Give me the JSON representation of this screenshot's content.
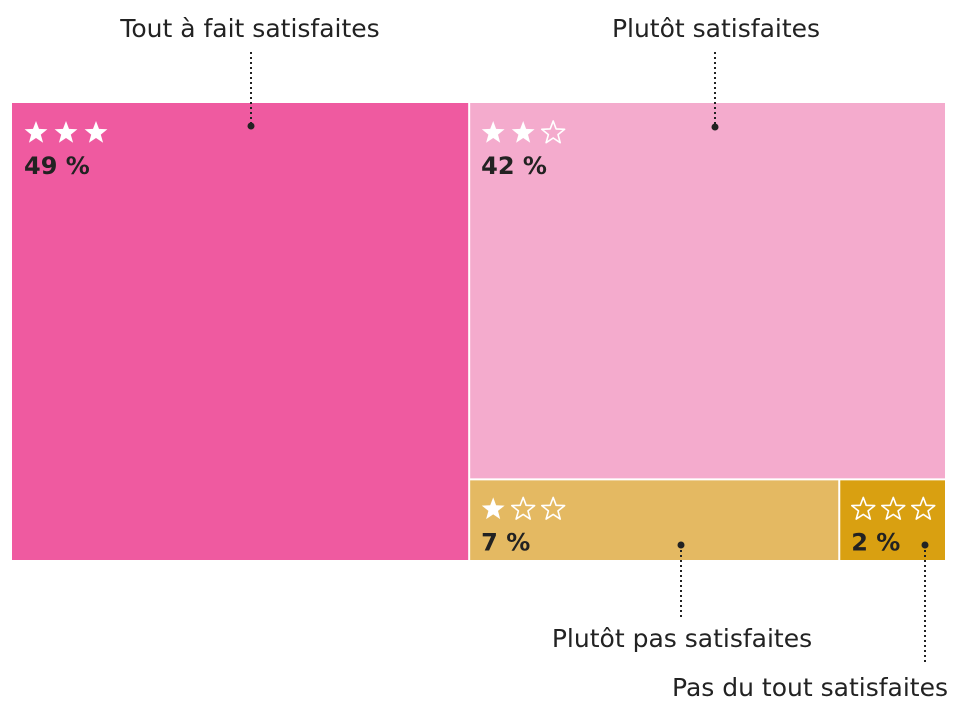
{
  "chart_data": {
    "type": "treemap",
    "categories": [
      "Tout à fait satisfaites",
      "Plutôt satisfaites",
      "Plutôt pas satisfaites",
      "Pas du tout satisfaites"
    ],
    "values": [
      49,
      42,
      7,
      2
    ],
    "value_labels": [
      "49 %",
      "42 %",
      "7 %",
      "2 %"
    ],
    "stars": [
      3,
      2,
      1,
      0
    ],
    "colors": [
      "#ef5aa0",
      "#f4abcd",
      "#e4b962",
      "#d9a011"
    ]
  }
}
